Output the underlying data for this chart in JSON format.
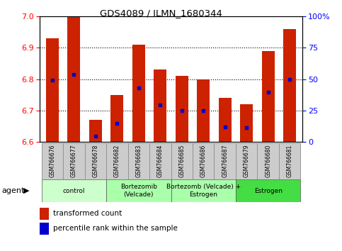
{
  "title": "GDS4089 / ILMN_1680344",
  "samples": [
    "GSM766676",
    "GSM766677",
    "GSM766678",
    "GSM766682",
    "GSM766683",
    "GSM766684",
    "GSM766685",
    "GSM766686",
    "GSM766687",
    "GSM766679",
    "GSM766680",
    "GSM766681"
  ],
  "red_values": [
    6.93,
    7.0,
    6.67,
    6.75,
    6.91,
    6.83,
    6.81,
    6.8,
    6.74,
    6.72,
    6.89,
    6.96
  ],
  "blue_values": [
    6.796,
    6.815,
    6.617,
    6.658,
    6.772,
    6.718,
    6.7,
    6.7,
    6.648,
    6.646,
    6.758,
    6.8
  ],
  "ylim_left": [
    6.6,
    7.0
  ],
  "ylim_right": [
    0,
    100
  ],
  "yticks_left": [
    6.6,
    6.7,
    6.8,
    6.9,
    7.0
  ],
  "yticks_right": [
    0,
    25,
    50,
    75,
    100
  ],
  "ytick_labels_right": [
    "0",
    "25",
    "50",
    "75",
    "100%"
  ],
  "bar_color": "#cc2200",
  "dot_color": "#0000cc",
  "bg_color": "#ffffff",
  "group_data": [
    {
      "start": 0,
      "end": 3,
      "label": "control",
      "color": "#ccffcc"
    },
    {
      "start": 3,
      "end": 6,
      "label": "Bortezomib\n(Velcade)",
      "color": "#aaffaa"
    },
    {
      "start": 6,
      "end": 9,
      "label": "Bortezomb (Velcade) +\nEstrogen",
      "color": "#aaffaa"
    },
    {
      "start": 9,
      "end": 12,
      "label": "Estrogen",
      "color": "#44dd44"
    }
  ],
  "legend_red": "transformed count",
  "legend_blue": "percentile rank within the sample",
  "bar_width": 0.6
}
